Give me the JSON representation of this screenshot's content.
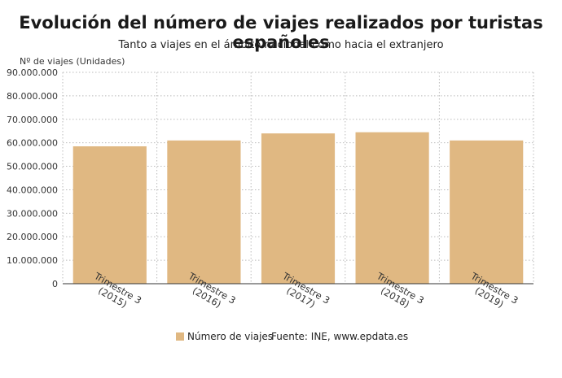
{
  "chart_data": {
    "type": "bar",
    "title": "Evolución del número de viajes realizados por turistas españoles",
    "subtitle": "Tanto a viajes en el ámbito nacional como hacia el extranjero",
    "ylabel": "Nº de viajes (Unidades)",
    "xlabel": "",
    "categories": [
      [
        "Trimestre 3",
        "(2015)"
      ],
      [
        "Trimestre 3",
        "(2016)"
      ],
      [
        "Trimestre 3",
        "(2017)"
      ],
      [
        "Trimestre 3",
        "(2018)"
      ],
      [
        "Trimestre 3",
        "(2019)"
      ]
    ],
    "series": [
      {
        "name": "Número de viajes",
        "values": [
          58500000,
          61000000,
          64000000,
          64500000,
          61000000
        ]
      }
    ],
    "ylim": [
      0,
      90000000
    ],
    "yticks": [
      "0",
      "10.000.000",
      "20.000.000",
      "30.000.000",
      "40.000.000",
      "50.000.000",
      "60.000.000",
      "70.000.000",
      "80.000.000",
      "90.000.000"
    ],
    "ytick_values": [
      0,
      10000000,
      20000000,
      30000000,
      40000000,
      50000000,
      60000000,
      70000000,
      80000000,
      90000000
    ],
    "grid": true,
    "legend_position": "bottom",
    "source": "Fuente: INE, www.epdata.es",
    "bar_color": "#e0b882",
    "grid_color": "#bbbbbb"
  }
}
